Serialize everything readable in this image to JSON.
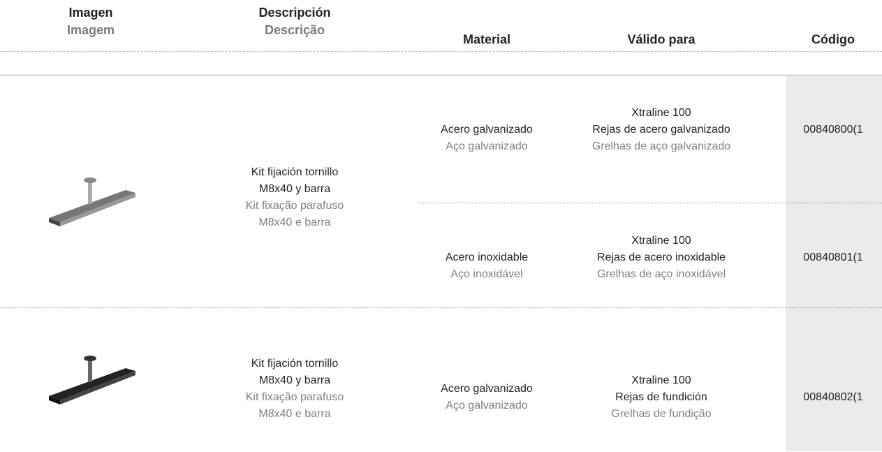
{
  "header": {
    "columns": [
      {
        "es": "Imagen",
        "pt": "Imagem"
      },
      {
        "es": "Descripción",
        "pt": "Descrição"
      },
      {
        "es": "Material"
      },
      {
        "es": "Válido para"
      },
      {
        "es": "Código"
      }
    ]
  },
  "table": {
    "rows": [
      {
        "description": {
          "es": [
            "Kit fijación tornillo",
            "M8x40 y barra"
          ],
          "pt": [
            "Kit fixação parafuso",
            "M8x40 e barra"
          ]
        },
        "items": [
          {
            "material": {
              "es": "Acero galvanizado",
              "pt": "Aço galvanizado"
            },
            "valid_for": {
              "es": [
                "Xtraline 100",
                "Rejas de acero galvanizado"
              ],
              "pt": "Grelhas de aço galvanizado"
            },
            "code": "00840800(1"
          },
          {
            "material": {
              "es": "Acero inoxidable",
              "pt": "Aço inoxidável"
            },
            "valid_for": {
              "es": [
                "Xtraline 100",
                "Rejas de acero inoxidable"
              ],
              "pt": "Grelhas de aço inoxidável"
            },
            "code": "00840801(1"
          }
        ]
      },
      {
        "description": {
          "es": [
            "Kit fijación tornillo",
            "M8x40 y barra"
          ],
          "pt": [
            "Kit fixação parafuso",
            "M8x40 e barra"
          ]
        },
        "items": [
          {
            "material": {
              "es": "Acero galvanizado",
              "pt": "Aço galvanizado"
            },
            "valid_for": {
              "es": [
                "Xtraline 100",
                "Rejas de fundición"
              ],
              "pt": "Grelhas de fundição"
            },
            "code": "00840802(1"
          }
        ]
      }
    ]
  }
}
